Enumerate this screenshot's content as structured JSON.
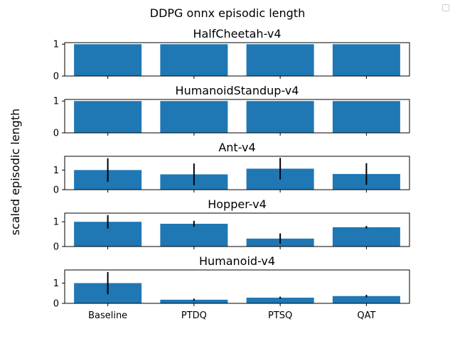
{
  "figure": {
    "suptitle": "DDPG onnx episodic length",
    "ylabel": "scaled episodic length",
    "bar_color": "#1f77b4",
    "error_color": "#000000"
  },
  "chart_data": [
    {
      "type": "bar",
      "title": "HalfCheetah-v4",
      "categories": [
        "Baseline",
        "PTDQ",
        "PTSQ",
        "QAT"
      ],
      "values": [
        1.0,
        1.0,
        1.0,
        1.0
      ],
      "errors": [
        0,
        0,
        0,
        0
      ],
      "ylim": [
        0,
        1.05
      ],
      "yticks": [
        0,
        1
      ],
      "ytick_labels": [
        "0",
        "1"
      ],
      "xtick_labels": []
    },
    {
      "type": "bar",
      "title": "HumanoidStandup-v4",
      "categories": [
        "Baseline",
        "PTDQ",
        "PTSQ",
        "QAT"
      ],
      "values": [
        1.0,
        1.0,
        1.0,
        1.0
      ],
      "errors": [
        0,
        0,
        0,
        0
      ],
      "ylim": [
        0,
        1.05
      ],
      "yticks": [
        0,
        1
      ],
      "ytick_labels": [
        "0",
        "1"
      ],
      "xtick_labels": []
    },
    {
      "type": "bar",
      "title": "Ant-v4",
      "categories": [
        "Baseline",
        "PTDQ",
        "PTSQ",
        "QAT"
      ],
      "values": [
        1.0,
        0.78,
        1.07,
        0.8
      ],
      "errors": [
        0.6,
        0.55,
        0.55,
        0.55
      ],
      "ylim": [
        0,
        1.7
      ],
      "yticks": [
        0,
        1
      ],
      "ytick_labels": [
        "0",
        "1"
      ],
      "xtick_labels": []
    },
    {
      "type": "bar",
      "title": "Hopper-v4",
      "categories": [
        "Baseline",
        "PTDQ",
        "PTSQ",
        "QAT"
      ],
      "values": [
        1.0,
        0.92,
        0.32,
        0.78
      ],
      "errors": [
        0.27,
        0.12,
        0.21,
        0.05
      ],
      "ylim": [
        0,
        1.35
      ],
      "yticks": [
        0,
        1
      ],
      "ytick_labels": [
        "0",
        "1"
      ],
      "xtick_labels": []
    },
    {
      "type": "bar",
      "title": "Humanoid-v4",
      "categories": [
        "Baseline",
        "PTDQ",
        "PTSQ",
        "QAT"
      ],
      "values": [
        1.0,
        0.18,
        0.28,
        0.36
      ],
      "errors": [
        0.55,
        0.05,
        0.05,
        0.06
      ],
      "ylim": [
        0,
        1.65
      ],
      "yticks": [
        0,
        1
      ],
      "ytick_labels": [
        "0",
        "1"
      ],
      "xtick_labels": [
        "Baseline",
        "PTDQ",
        "PTSQ",
        "QAT"
      ]
    }
  ]
}
